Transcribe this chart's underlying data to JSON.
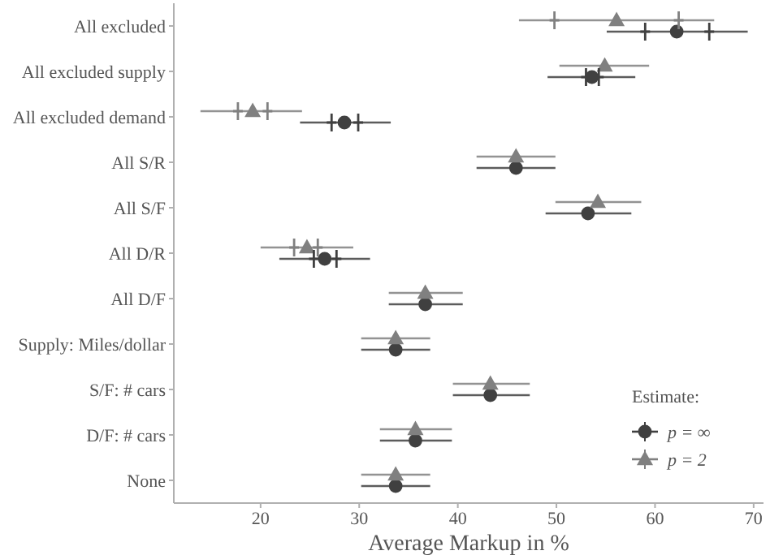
{
  "chart_data": {
    "type": "scatter",
    "orientation": "horizontal",
    "xlabel": "Average Markup in %",
    "legend_title": "Estimate:",
    "legend": "bottom right",
    "categories": [
      "All excluded",
      "All excluded supply",
      "All excluded demand",
      "All S/R",
      "All S/F",
      "All D/R",
      "All D/F",
      "Supply: Miles/dollar",
      "S/F: # cars",
      "D/F: # cars",
      "None"
    ],
    "xlim": [
      11.2,
      71
    ],
    "xticks": [
      20,
      30,
      40,
      50,
      60,
      70
    ],
    "series": [
      {
        "name": "p = ∞",
        "color": "#404040",
        "marker": "circle",
        "values": [
          62.2,
          53.6,
          28.5,
          45.9,
          53.2,
          26.5,
          36.7,
          33.7,
          43.3,
          35.7,
          33.7
        ],
        "errors": [
          [
            55.1,
            69.4
          ],
          [
            49.1,
            58.0
          ],
          [
            24.0,
            33.2
          ],
          [
            41.9,
            49.9
          ],
          [
            48.9,
            57.6
          ],
          [
            21.9,
            31.1
          ],
          [
            33.0,
            40.5
          ],
          [
            30.2,
            37.2
          ],
          [
            39.5,
            47.3
          ],
          [
            32.1,
            39.4
          ],
          [
            30.2,
            37.2
          ]
        ]
      },
      {
        "name": "p = 2",
        "color": "#808080",
        "marker": "triangle",
        "values": [
          56.1,
          54.9,
          19.2,
          45.9,
          54.2,
          24.7,
          36.7,
          33.7,
          43.3,
          35.7,
          33.7
        ],
        "errors": [
          [
            46.2,
            66.0
          ],
          [
            50.3,
            59.4
          ],
          [
            13.9,
            24.2
          ],
          [
            41.9,
            49.9
          ],
          [
            49.9,
            58.6
          ],
          [
            20.0,
            29.4
          ],
          [
            33.0,
            40.5
          ],
          [
            30.2,
            37.2
          ],
          [
            39.5,
            47.3
          ],
          [
            32.1,
            39.4
          ],
          [
            30.2,
            37.2
          ]
        ]
      },
      {
        "color": "#404040",
        "marker": "cross",
        "values": [
          59.0,
          53.0,
          27.2,
          null,
          null,
          25.4,
          null,
          null,
          null,
          null,
          null
        ]
      },
      {
        "color": "#808080",
        "marker": "cross",
        "values": [
          49.8,
          null,
          17.7,
          null,
          null,
          23.4,
          null,
          null,
          null,
          null,
          null
        ]
      },
      {
        "color": "#404040",
        "marker": "cross",
        "values": [
          65.5,
          54.3,
          29.9,
          null,
          null,
          27.7,
          null,
          null,
          null,
          null,
          null
        ]
      },
      {
        "color": "#808080",
        "marker": "cross",
        "values": [
          62.4,
          null,
          20.7,
          null,
          null,
          25.8,
          null,
          null,
          null,
          null,
          null
        ]
      }
    ]
  }
}
